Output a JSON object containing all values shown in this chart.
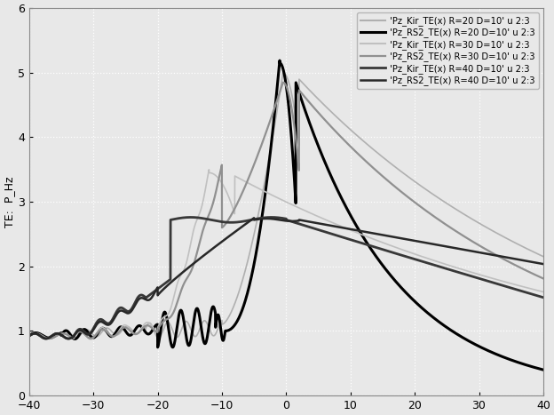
{
  "xlim": [
    -40,
    40
  ],
  "ylim": [
    0,
    6
  ],
  "ylabel": "TE:  P_Hz",
  "yticks": [
    0,
    1,
    2,
    3,
    4,
    5,
    6
  ],
  "xticks": [
    -40,
    -30,
    -20,
    -10,
    0,
    10,
    20,
    30,
    40
  ],
  "legend_entries": [
    "'Pz_Kir_TE(x) R=20 D=10' u 2:3",
    "'Pz_RS2_TE(x) R=20 D=10' u 2:3",
    "'Pz_Kir_TE(x) R=30 D=10' u 2:3",
    "'Pz_RS2_TE(x) R=30 D=10' u 2:3",
    "'Pz_Kir_TE(x) R=40 D=10' u 2:3",
    "'Pz_RS2_TE(x) R=40 D=10' u 2:3"
  ],
  "line_colors": [
    "#b0b0b0",
    "#000000",
    "#c0c0c0",
    "#909090",
    "#383838",
    "#282828"
  ],
  "line_widths": [
    1.2,
    2.2,
    1.2,
    1.6,
    2.0,
    1.8
  ],
  "bg_color": "#e8e8e8",
  "grid_color": "#ffffff",
  "figsize": [
    6.24,
    4.67
  ],
  "dpi": 100
}
